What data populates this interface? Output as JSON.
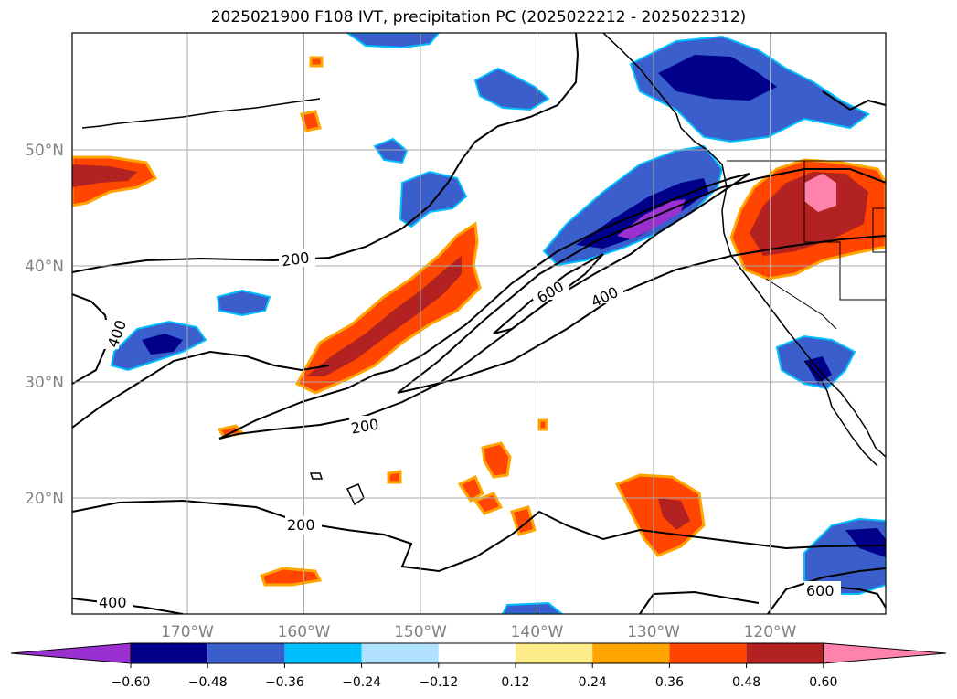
{
  "title": "2025021900 F108 IVT, precipitation PC (2025022212 - 2025022312)",
  "lon_ticks": [
    {
      "value": -170,
      "label": "170°W"
    },
    {
      "value": -160,
      "label": "160°W"
    },
    {
      "value": -150,
      "label": "150°W"
    },
    {
      "value": -140,
      "label": "140°W"
    },
    {
      "value": -130,
      "label": "130°W"
    },
    {
      "value": -120,
      "label": "120°W"
    }
  ],
  "lat_ticks": [
    {
      "value": 20,
      "label": "20°N"
    },
    {
      "value": 30,
      "label": "30°N"
    },
    {
      "value": 40,
      "label": "40°N"
    },
    {
      "value": 50,
      "label": "50°N"
    }
  ],
  "contour_labels": [
    "200",
    "200",
    "200",
    "400",
    "400",
    "600",
    "400",
    "600"
  ],
  "colorbar": {
    "colors": [
      "#9b30d0",
      "#00008b",
      "#3a5fcd",
      "#00bfff",
      "#b0e2ff",
      "#ffffff",
      "#ffec8b",
      "#ffa500",
      "#ff4500",
      "#b22222",
      "#ff82ab"
    ],
    "tick_labels": [
      "−0.60",
      "−0.48",
      "−0.36",
      "−0.24",
      "−0.12",
      "0.12",
      "0.24",
      "0.36",
      "0.48",
      "0.60"
    ]
  }
}
